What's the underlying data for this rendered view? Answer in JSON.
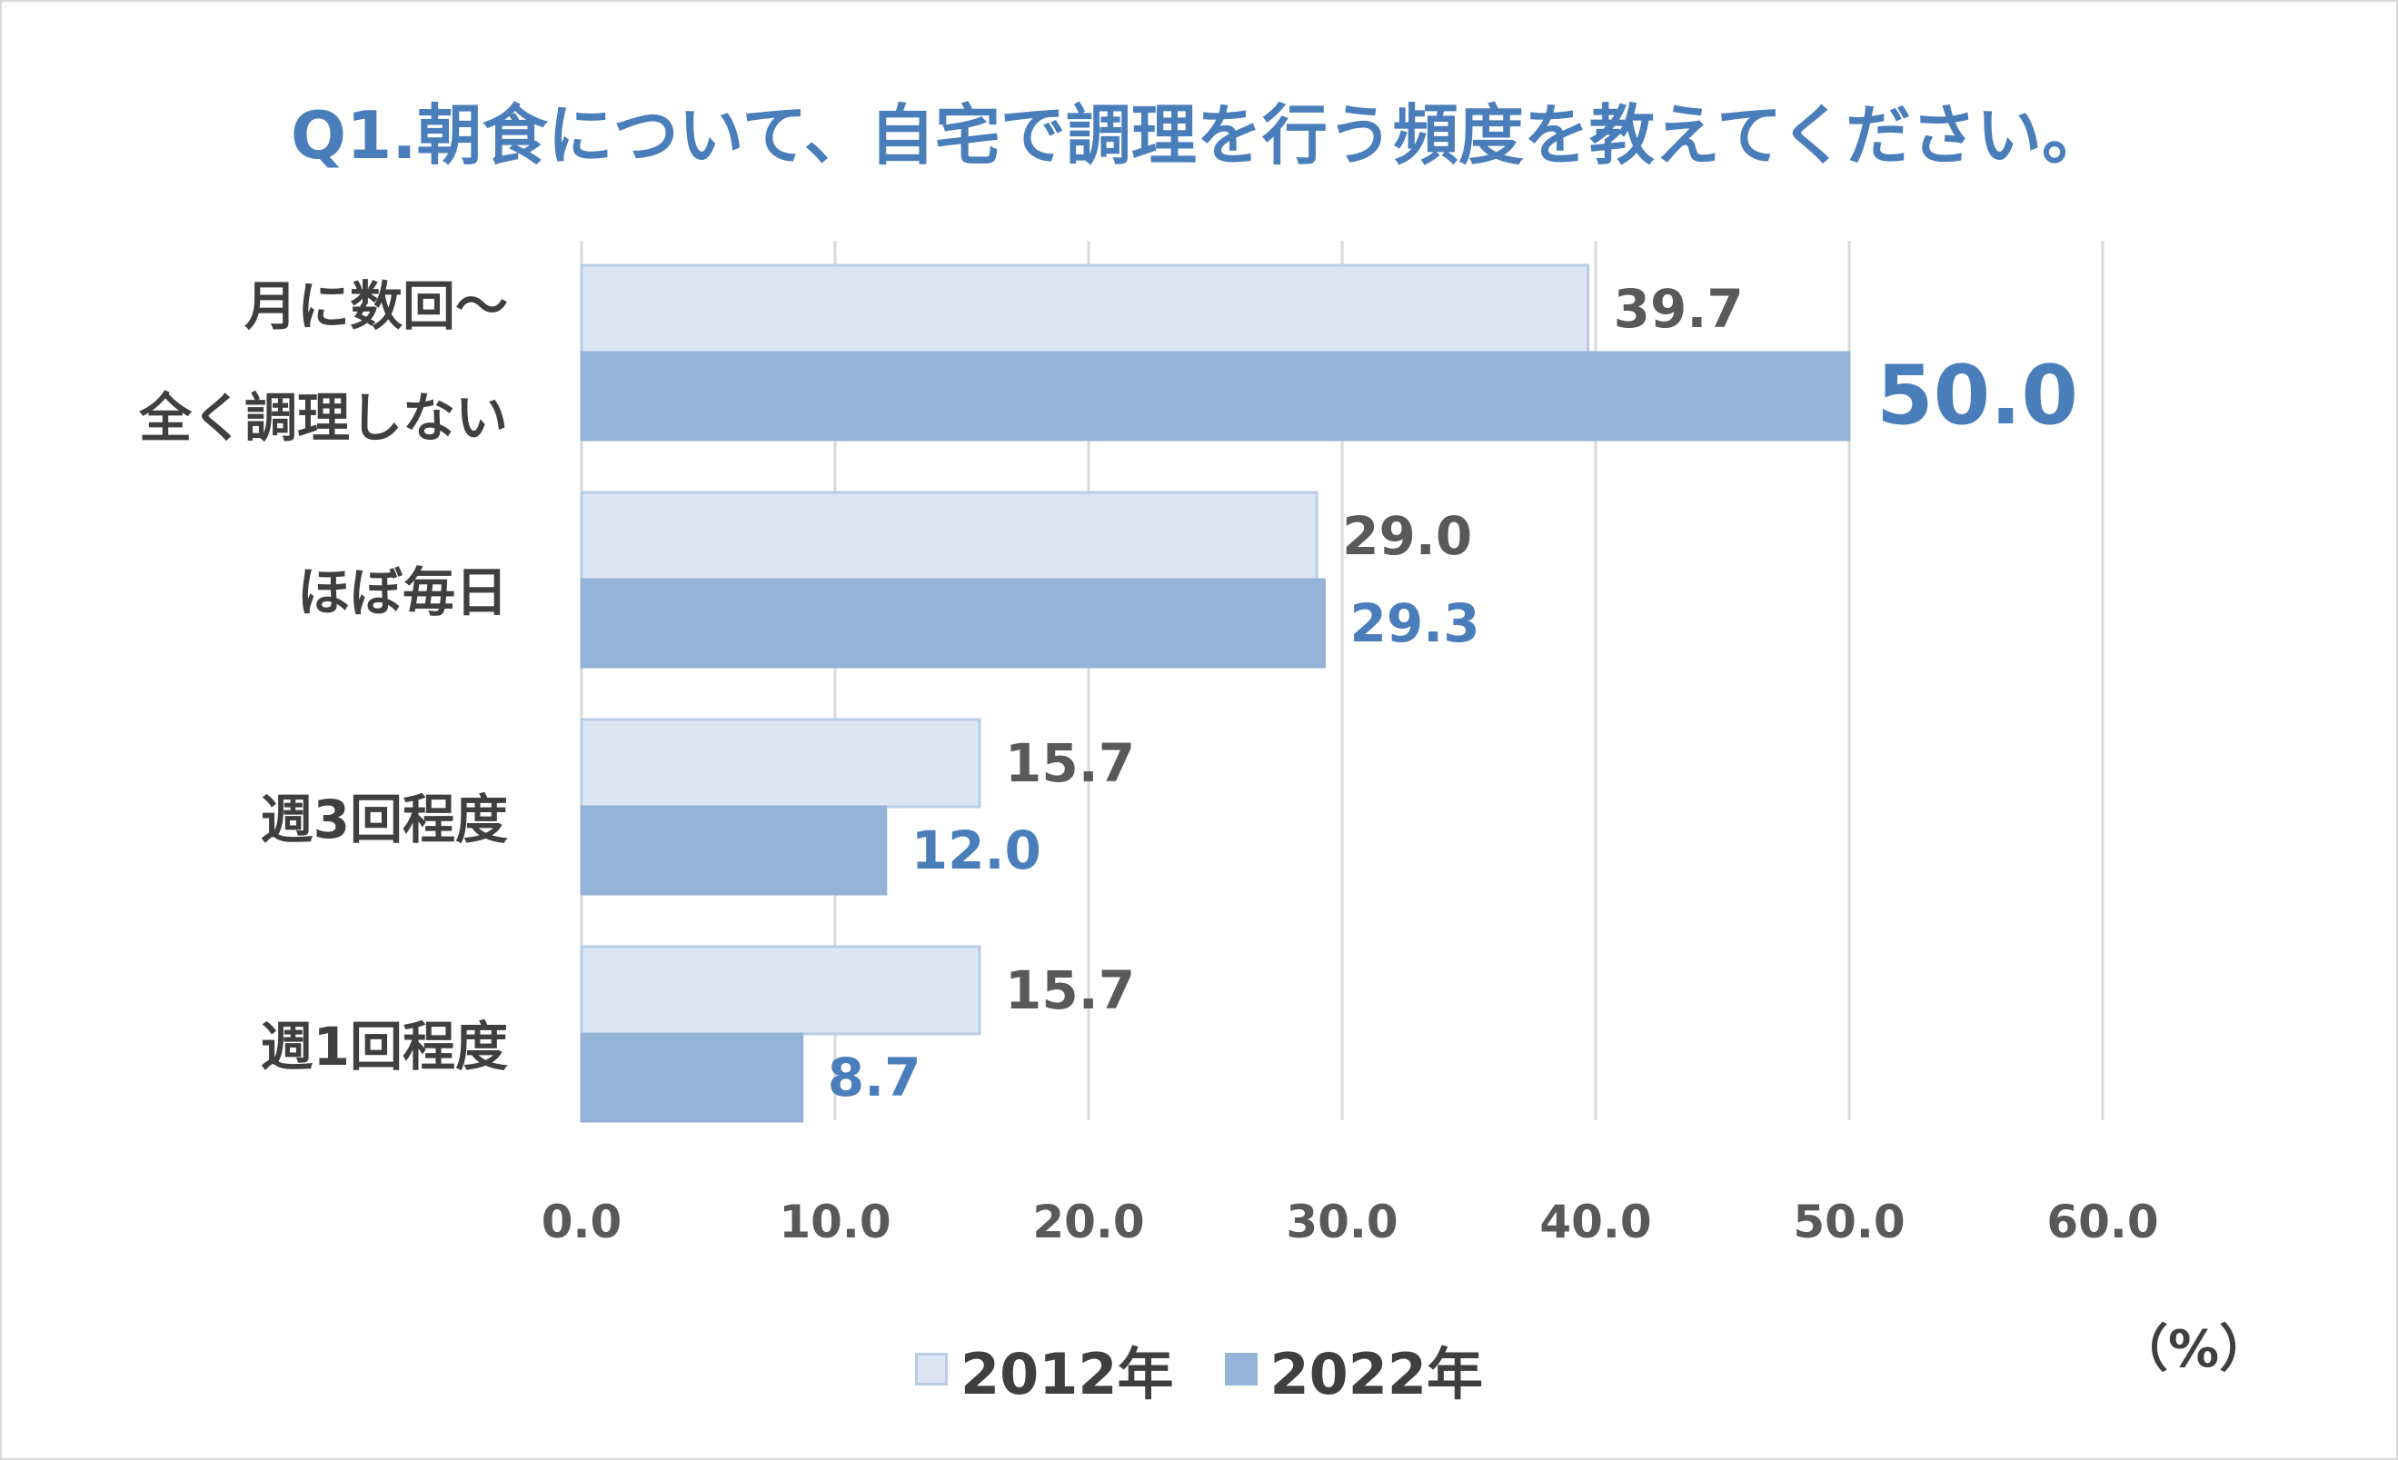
{
  "title": "Q1.朝食について、自宅で調理を行う頻度を教えてください。",
  "unit_label": "（%）",
  "colors": {
    "series_2012_fill": "#dce6f2",
    "series_2012_border": "#b9cde5",
    "series_2022_fill": "#95b3d7",
    "title": "#4a7ebb",
    "label_2012": "#595959",
    "label_2022": "#4a7ebb",
    "grid": "#d9d9d9"
  },
  "chart_data": {
    "type": "bar",
    "orientation": "horizontal",
    "categories": [
      "月に数回～\n全く調理しない",
      "ほぼ毎日",
      "週3回程度",
      "週1回程度"
    ],
    "series": [
      {
        "name": "2012年",
        "values": [
          39.7,
          29.0,
          15.7,
          15.7
        ]
      },
      {
        "name": "2022年",
        "values": [
          50.0,
          29.3,
          12.0,
          8.7
        ]
      }
    ],
    "data_labels": [
      [
        "39.7",
        "29.0",
        "15.7",
        "15.7"
      ],
      [
        "50.0",
        "29.3",
        "12.0",
        "8.7"
      ]
    ],
    "xlim": [
      0,
      60
    ],
    "ticks": [
      "0.0",
      "10.0",
      "20.0",
      "30.0",
      "40.0",
      "50.0",
      "60.0"
    ],
    "grid": true,
    "legend_position": "bottom"
  },
  "category_labels": [
    {
      "lines": [
        "月に数回～",
        "全く調理しない"
      ]
    },
    {
      "lines": [
        "ほぼ毎日"
      ]
    },
    {
      "lines": [
        "週3回程度"
      ]
    },
    {
      "lines": [
        "週1回程度"
      ]
    }
  ],
  "legend": [
    {
      "label": "2012年"
    },
    {
      "label": "2022年"
    }
  ]
}
